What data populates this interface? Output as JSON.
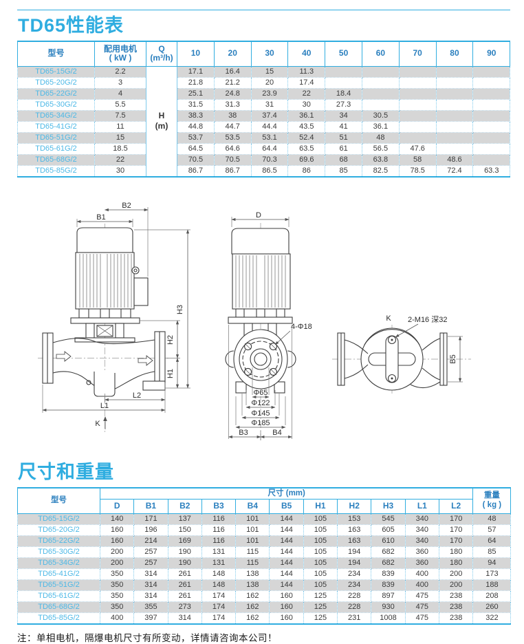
{
  "performance": {
    "title": "TD65性能表",
    "headers": {
      "model": "型号",
      "motor_line1": "配用电机",
      "motor_line2": "( kW )",
      "q_line1": "Q",
      "q_line2": "(m³/h)"
    },
    "flow_columns": [
      "10",
      "20",
      "30",
      "40",
      "50",
      "60",
      "70",
      "80",
      "90"
    ],
    "h_unit": {
      "line1": "H",
      "line2": "(m)"
    },
    "rows": [
      {
        "model": "TD65-15G/2",
        "kw": "2.2",
        "values": [
          "17.1",
          "16.4",
          "15",
          "11.3",
          "",
          "",
          "",
          "",
          ""
        ]
      },
      {
        "model": "TD65-20G/2",
        "kw": "3",
        "values": [
          "21.8",
          "21.2",
          "20",
          "17.4",
          "",
          "",
          "",
          "",
          ""
        ]
      },
      {
        "model": "TD65-22G/2",
        "kw": "4",
        "values": [
          "25.1",
          "24.8",
          "23.9",
          "22",
          "18.4",
          "",
          "",
          "",
          ""
        ]
      },
      {
        "model": "TD65-30G/2",
        "kw": "5.5",
        "values": [
          "31.5",
          "31.3",
          "31",
          "30",
          "27.3",
          "",
          "",
          "",
          ""
        ]
      },
      {
        "model": "TD65-34G/2",
        "kw": "7.5",
        "values": [
          "38.3",
          "38",
          "37.4",
          "36.1",
          "34",
          "30.5",
          "",
          "",
          ""
        ]
      },
      {
        "model": "TD65-41G/2",
        "kw": "11",
        "values": [
          "44.8",
          "44.7",
          "44.4",
          "43.5",
          "41",
          "36.1",
          "",
          "",
          ""
        ]
      },
      {
        "model": "TD65-51G/2",
        "kw": "15",
        "values": [
          "53.7",
          "53.5",
          "53.1",
          "52.4",
          "51",
          "48",
          "",
          "",
          ""
        ]
      },
      {
        "model": "TD65-61G/2",
        "kw": "18.5",
        "values": [
          "64.5",
          "64.6",
          "64.4",
          "63.5",
          "61",
          "56.5",
          "47.6",
          "",
          ""
        ]
      },
      {
        "model": "TD65-68G/2",
        "kw": "22",
        "values": [
          "70.5",
          "70.5",
          "70.3",
          "69.6",
          "68",
          "63.8",
          "58",
          "48.6",
          ""
        ]
      },
      {
        "model": "TD65-85G/2",
        "kw": "30",
        "values": [
          "86.7",
          "86.7",
          "86.5",
          "86",
          "85",
          "82.5",
          "78.5",
          "72.4",
          "63.3"
        ]
      }
    ]
  },
  "dimensions": {
    "title": "尺寸和重量",
    "headers": {
      "model": "型号",
      "size_span": "尺寸 (mm)",
      "weight_line1": "重量",
      "weight_line2": "( kg )"
    },
    "columns": [
      "D",
      "B1",
      "B2",
      "B3",
      "B4",
      "B5",
      "H1",
      "H2",
      "H3",
      "L1",
      "L2"
    ],
    "rows": [
      {
        "model": "TD65-15G/2",
        "values": [
          "140",
          "171",
          "137",
          "116",
          "101",
          "144",
          "105",
          "153",
          "545",
          "340",
          "170"
        ],
        "weight": "48"
      },
      {
        "model": "TD65-20G/2",
        "values": [
          "160",
          "196",
          "150",
          "116",
          "101",
          "144",
          "105",
          "163",
          "605",
          "340",
          "170"
        ],
        "weight": "57"
      },
      {
        "model": "TD65-22G/2",
        "values": [
          "160",
          "214",
          "169",
          "116",
          "101",
          "144",
          "105",
          "163",
          "610",
          "340",
          "170"
        ],
        "weight": "64"
      },
      {
        "model": "TD65-30G/2",
        "values": [
          "200",
          "257",
          "190",
          "131",
          "115",
          "144",
          "105",
          "194",
          "682",
          "360",
          "180"
        ],
        "weight": "85"
      },
      {
        "model": "TD65-34G/2",
        "values": [
          "200",
          "257",
          "190",
          "131",
          "115",
          "144",
          "105",
          "194",
          "682",
          "360",
          "180"
        ],
        "weight": "94"
      },
      {
        "model": "TD65-41G/2",
        "values": [
          "350",
          "314",
          "261",
          "148",
          "138",
          "144",
          "105",
          "234",
          "839",
          "400",
          "200"
        ],
        "weight": "173"
      },
      {
        "model": "TD65-51G/2",
        "values": [
          "350",
          "314",
          "261",
          "148",
          "138",
          "144",
          "105",
          "234",
          "839",
          "400",
          "200"
        ],
        "weight": "188"
      },
      {
        "model": "TD65-61G/2",
        "values": [
          "350",
          "314",
          "261",
          "174",
          "162",
          "160",
          "125",
          "228",
          "897",
          "475",
          "238"
        ],
        "weight": "208"
      },
      {
        "model": "TD65-68G/2",
        "values": [
          "350",
          "355",
          "273",
          "174",
          "162",
          "160",
          "125",
          "228",
          "930",
          "475",
          "238"
        ],
        "weight": "260"
      },
      {
        "model": "TD65-85G/2",
        "values": [
          "400",
          "397",
          "314",
          "174",
          "162",
          "160",
          "125",
          "231",
          "1008",
          "475",
          "238"
        ],
        "weight": "322"
      }
    ]
  },
  "drawing": {
    "labels": {
      "b1": "B1",
      "b2": "B2",
      "b3": "B3",
      "b4": "B4",
      "b5": "B5",
      "d": "D",
      "h1": "H1",
      "h2": "H2",
      "h3": "H3",
      "l1": "L1",
      "l2": "L2",
      "k_side": "K",
      "k_top": "K",
      "bolt_holes": "4-Φ18",
      "thread": "2-M16 深32",
      "phi65": "Φ65",
      "phi122": "Φ122",
      "phi145": "Φ145",
      "phi185": "Φ185"
    }
  },
  "note": "注：单相电机，隔爆电机尺寸有所变动，详情请咨询本公司！",
  "colors": {
    "accent": "#2FADE0",
    "header_text": "#2A7FBE",
    "model_text": "#4CB8E6",
    "row_shade": "#D6D6D6"
  }
}
